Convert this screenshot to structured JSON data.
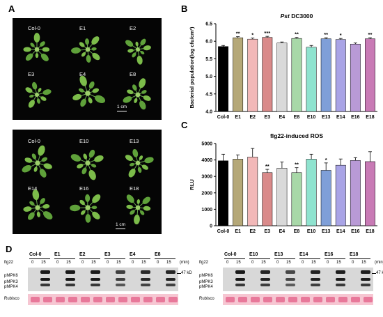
{
  "panels": {
    "A": "A",
    "B": "B",
    "C": "C",
    "D": "D"
  },
  "photo_top": {
    "labels": [
      "Col-0",
      "E1",
      "E2",
      "E3",
      "E4",
      "E8"
    ],
    "scale": "1 cm"
  },
  "photo_bottom": {
    "labels": [
      "Col-0",
      "E10",
      "E13",
      "E14",
      "E16",
      "E18"
    ],
    "scale": "1 cm"
  },
  "chart_data": [
    {
      "type": "bar",
      "title_italic": "Pst",
      "title_rest": " DC3000",
      "ylabel": "Bacterial population(log cfu/cm²)",
      "categories": [
        "Col-0",
        "E1",
        "E2",
        "E3",
        "E4",
        "E8",
        "E10",
        "E13",
        "E14",
        "E16",
        "E18"
      ],
      "values": [
        5.85,
        6.1,
        6.06,
        6.11,
        5.95,
        6.08,
        5.83,
        6.07,
        6.05,
        5.92,
        6.07
      ],
      "errors": [
        0.03,
        0.03,
        0.03,
        0.03,
        0.03,
        0.03,
        0.05,
        0.03,
        0.03,
        0.03,
        0.03
      ],
      "significance": [
        "",
        "**",
        "*",
        "***",
        "",
        "**",
        "",
        "**",
        "*",
        "",
        "**"
      ],
      "colors": [
        "#000000",
        "#b5a878",
        "#f2b8b8",
        "#d98a8a",
        "#d9d9d9",
        "#a8d8a8",
        "#8fe3cf",
        "#7f9fd8",
        "#a9a4e6",
        "#b99ad6",
        "#c87ab5"
      ],
      "ylim": [
        4.0,
        6.5
      ],
      "yticks": [
        "4.0",
        "4.5",
        "5.0",
        "5.5",
        "6.0",
        "6.5"
      ]
    },
    {
      "type": "bar",
      "title": "flg22-induced ROS",
      "ylabel": "RLU",
      "categories": [
        "Col-0",
        "E1",
        "E2",
        "E3",
        "E4",
        "E8",
        "E10",
        "E13",
        "E14",
        "E16",
        "E18"
      ],
      "values": [
        3950,
        4050,
        4180,
        3230,
        3500,
        3230,
        4050,
        3370,
        3680,
        3970,
        3900
      ],
      "errors": [
        400,
        260,
        520,
        200,
        380,
        300,
        300,
        450,
        380,
        170,
        600
      ],
      "significance": [
        "",
        "",
        "",
        "**",
        "",
        "**",
        "",
        "*",
        "",
        "",
        ""
      ],
      "colors": [
        "#000000",
        "#b5a878",
        "#f2b8b8",
        "#d98a8a",
        "#d9d9d9",
        "#a8d8a8",
        "#8fe3cf",
        "#7f9fd8",
        "#a9a4e6",
        "#b99ad6",
        "#c87ab5"
      ],
      "ylim": [
        0,
        5000
      ],
      "yticks": [
        "0",
        "1000",
        "2000",
        "3000",
        "4000",
        "5000"
      ]
    }
  ],
  "western": {
    "left": {
      "groups": [
        "Col-0",
        "E1",
        "E2",
        "E3",
        "E4",
        "E8"
      ],
      "intensity": [
        1,
        1,
        1,
        0.55,
        0.8,
        0.85
      ]
    },
    "right": {
      "groups": [
        "Col-0",
        "E10",
        "E13",
        "E14",
        "E16",
        "E18"
      ],
      "intensity": [
        1,
        0.9,
        0.45,
        0.9,
        0.95,
        0.95
      ]
    },
    "flg22_label": "flg22",
    "times": [
      "0",
      "15"
    ],
    "unit": "(min)",
    "bands": [
      "pMPK6",
      "pMPK3",
      "pMPK4"
    ],
    "kd": "47 kD",
    "loading": "Rubisco"
  }
}
